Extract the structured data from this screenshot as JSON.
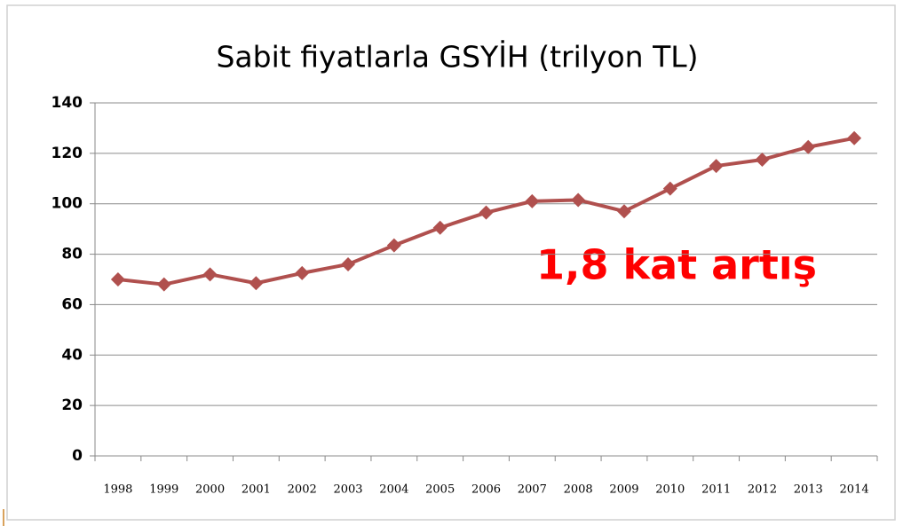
{
  "chart_data": {
    "type": "line",
    "title": "Sabit fiyatlarla GSYİH (trilyon TL)",
    "categories": [
      "1998",
      "1999",
      "2000",
      "2001",
      "2002",
      "2003",
      "2004",
      "2005",
      "2006",
      "2007",
      "2008",
      "2009",
      "2010",
      "2011",
      "2012",
      "2013",
      "2014"
    ],
    "series": [
      {
        "name": "GSYİH",
        "color": "#b0504e",
        "values": [
          70,
          68,
          72,
          68.5,
          72.5,
          76,
          83.5,
          90.5,
          96.5,
          101,
          101.5,
          97,
          106,
          115,
          117.5,
          122.5,
          126
        ]
      }
    ],
    "ylim": [
      0,
      140
    ],
    "yticks": [
      0,
      20,
      40,
      60,
      80,
      100,
      120,
      140
    ],
    "grid": true,
    "annotation": "1,8 kat artış"
  }
}
